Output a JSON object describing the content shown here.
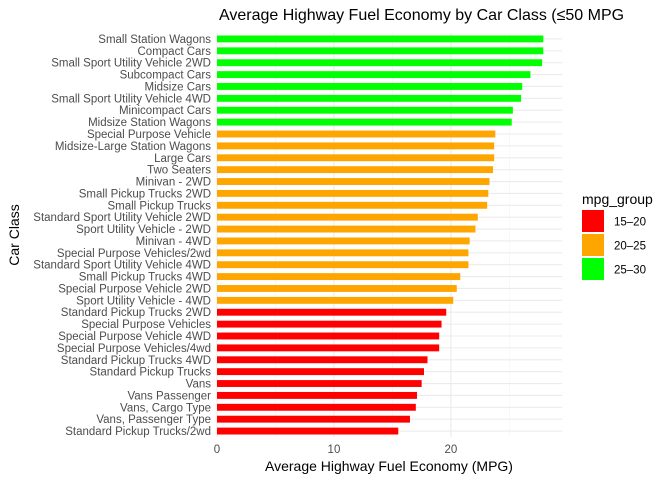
{
  "chart_data": {
    "type": "bar",
    "orientation": "horizontal",
    "title": "Average Highway Fuel Economy by Car Class (≤50 MPG",
    "xlabel": "Average Highway Fuel Economy (MPG)",
    "ylabel": "Car Class",
    "xlim": [
      0,
      29.5
    ],
    "xticks": [
      0,
      10,
      20
    ],
    "grid": true,
    "legend": {
      "title": "mpg_group",
      "placement": "right",
      "items": [
        {
          "label": "15–20",
          "color": "#ff0000"
        },
        {
          "label": "20–25",
          "color": "#ffa500"
        },
        {
          "label": "25–30",
          "color": "#00ff00"
        }
      ]
    },
    "categories": [
      "Small Station Wagons",
      "Compact Cars",
      "Small Sport Utility Vehicle 2WD",
      "Subcompact Cars",
      "Midsize Cars",
      "Small Sport Utility Vehicle 4WD",
      "Minicompact Cars",
      "Midsize Station Wagons",
      "Special Purpose Vehicle",
      "Midsize-Large Station Wagons",
      "Large Cars",
      "Two Seaters",
      "Minivan - 2WD",
      "Small Pickup Trucks 2WD",
      "Small Pickup Trucks",
      "Standard Sport Utility Vehicle 2WD",
      "Sport Utility Vehicle - 2WD",
      "Minivan - 4WD",
      "Special Purpose Vehicles/2wd",
      "Standard Sport Utility Vehicle 4WD",
      "Small Pickup Trucks 4WD",
      "Special Purpose Vehicle 2WD",
      "Sport Utility Vehicle - 4WD",
      "Standard Pickup Trucks 2WD",
      "Special Purpose Vehicles",
      "Special Purpose Vehicle 4WD",
      "Special Purpose Vehicles/4wd",
      "Standard Pickup Trucks 4WD",
      "Standard Pickup Trucks",
      "Vans",
      "Vans Passenger",
      "Vans, Cargo Type",
      "Vans, Passenger Type",
      "Standard Pickup Trucks/2wd"
    ],
    "values": [
      27.9,
      27.9,
      27.8,
      26.8,
      26.1,
      26.0,
      25.3,
      25.2,
      23.8,
      23.7,
      23.7,
      23.6,
      23.3,
      23.2,
      23.1,
      22.3,
      22.1,
      21.6,
      21.5,
      21.5,
      20.8,
      20.5,
      20.2,
      19.6,
      19.2,
      19.0,
      19.0,
      18.0,
      17.7,
      17.5,
      17.1,
      17.0,
      16.5,
      15.5
    ],
    "groups": [
      "25–30",
      "25–30",
      "25–30",
      "25–30",
      "25–30",
      "25–30",
      "25–30",
      "25–30",
      "20–25",
      "20–25",
      "20–25",
      "20–25",
      "20–25",
      "20–25",
      "20–25",
      "20–25",
      "20–25",
      "20–25",
      "20–25",
      "20–25",
      "20–25",
      "20–25",
      "20–25",
      "15–20",
      "15–20",
      "15–20",
      "15–20",
      "15–20",
      "15–20",
      "15–20",
      "15–20",
      "15–20",
      "15–20",
      "15–20"
    ]
  }
}
